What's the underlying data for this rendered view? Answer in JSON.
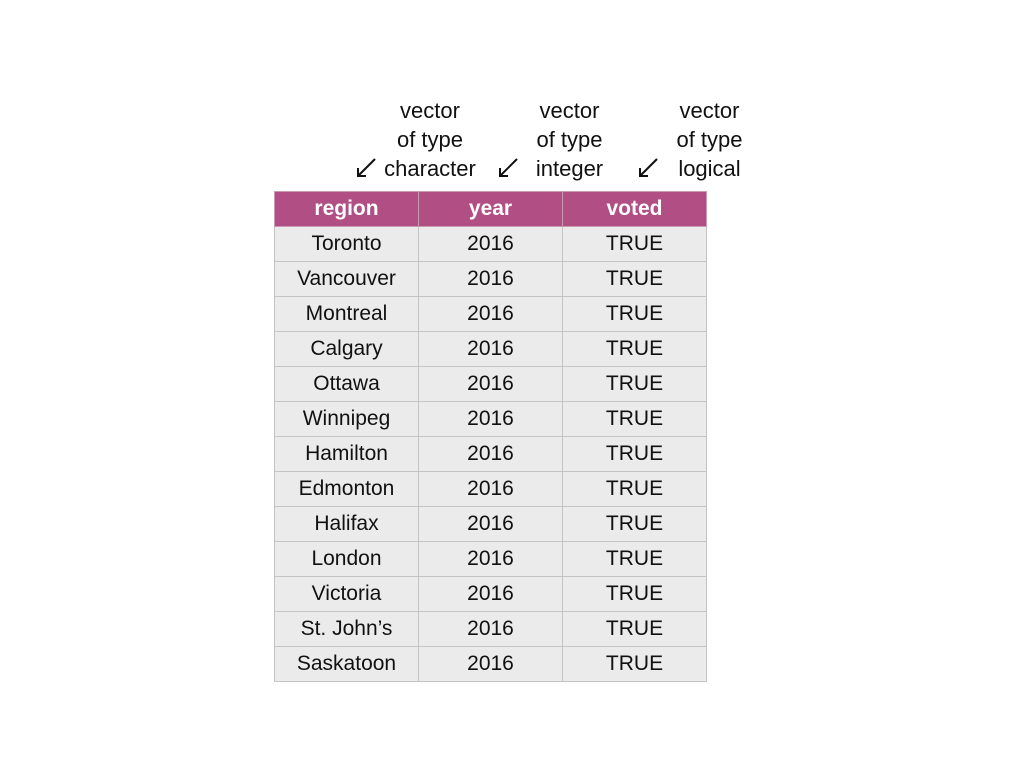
{
  "annotations": [
    {
      "lines": [
        "vector",
        "of type",
        "character"
      ]
    },
    {
      "lines": [
        "vector",
        "of type",
        "integer"
      ]
    },
    {
      "lines": [
        "vector",
        "of type",
        "logical"
      ]
    }
  ],
  "table": {
    "columns": [
      "region",
      "year",
      "voted"
    ],
    "rows": [
      [
        "Toronto",
        "2016",
        "TRUE"
      ],
      [
        "Vancouver",
        "2016",
        "TRUE"
      ],
      [
        "Montreal",
        "2016",
        "TRUE"
      ],
      [
        "Calgary",
        "2016",
        "TRUE"
      ],
      [
        "Ottawa",
        "2016",
        "TRUE"
      ],
      [
        "Winnipeg",
        "2016",
        "TRUE"
      ],
      [
        "Hamilton",
        "2016",
        "TRUE"
      ],
      [
        "Edmonton",
        "2016",
        "TRUE"
      ],
      [
        "Halifax",
        "2016",
        "TRUE"
      ],
      [
        "London",
        "2016",
        "TRUE"
      ],
      [
        "Victoria",
        "2016",
        "TRUE"
      ],
      [
        "St. John’s",
        "2016",
        "TRUE"
      ],
      [
        "Saskatoon",
        "2016",
        "TRUE"
      ]
    ]
  },
  "colors": {
    "header_fill": "#b14f85",
    "cell_fill": "#ebebeb",
    "header_text": "#ffffff"
  }
}
